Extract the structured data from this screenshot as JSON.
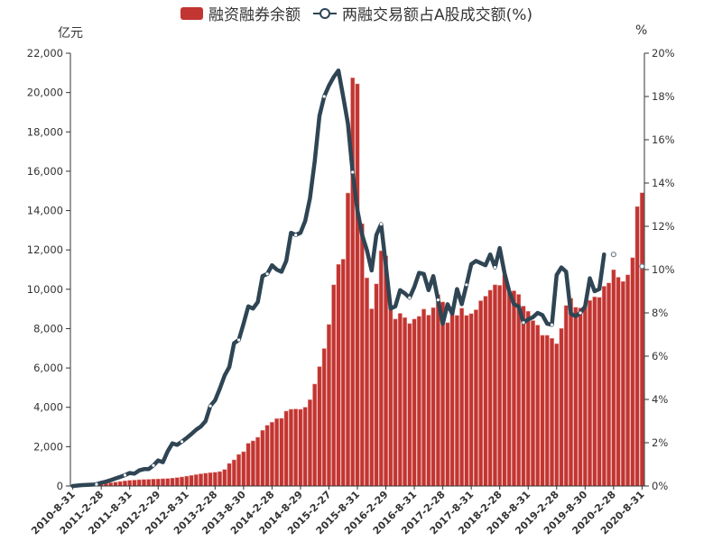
{
  "legend": {
    "bar_label": "融资融券余额",
    "line_label": "两融交易额占A股成交额(%)"
  },
  "chart_data": {
    "type": "bar+line",
    "title": "",
    "left_axis_label": "亿元",
    "right_axis_label": "%",
    "left_ylim": [
      0,
      22000
    ],
    "right_ylim": [
      0,
      20
    ],
    "left_ticks": [
      "0",
      "2,000",
      "4,000",
      "6,000",
      "8,000",
      "10,000",
      "12,000",
      "14,000",
      "16,000",
      "18,000",
      "20,000",
      "22,000"
    ],
    "right_ticks": [
      "0%",
      "2%",
      "4%",
      "6%",
      "8%",
      "10%",
      "12%",
      "14%",
      "16%",
      "18%",
      "20%"
    ],
    "x_tick_labels": [
      "2010-8-31",
      "2011-2-28",
      "2011-8-31",
      "2012-2-29",
      "2012-8-31",
      "2013-2-28",
      "2013-8-30",
      "2014-2-28",
      "2014-8-29",
      "2015-2-27",
      "2015-8-31",
      "2016-2-29",
      "2016-8-31",
      "2017-2-28",
      "2017-8-31",
      "2018-2-28",
      "2018-8-31",
      "2019-2-28",
      "2019-8-30",
      "2020-2-28",
      "2020-8-31"
    ],
    "x_tick_every_n_months": 6,
    "colors": {
      "bar": "#c23531",
      "line": "#2f4554"
    },
    "series": [
      {
        "name": "融资融券余额",
        "type": "bar",
        "axis": "left",
        "values": [
          0,
          0,
          0,
          0,
          30,
          60,
          100,
          130,
          170,
          200,
          230,
          260,
          290,
          300,
          320,
          330,
          340,
          350,
          360,
          370,
          380,
          400,
          430,
          460,
          500,
          540,
          580,
          620,
          650,
          680,
          700,
          734,
          840,
          1147,
          1330,
          1606,
          1743,
          2171,
          2294,
          2477,
          2830,
          3088,
          3242,
          3425,
          3440,
          3807,
          3900,
          3915,
          3900,
          4006,
          4388,
          5183,
          6070,
          6988,
          8211,
          10229,
          11269,
          11529,
          14893,
          20749,
          20443,
          13333,
          10581,
          9006,
          10275,
          11957,
          11700,
          9128,
          8486,
          8776,
          8563,
          8257,
          8486,
          8624,
          8991,
          8685,
          9067,
          9725,
          9358,
          8300,
          8823,
          8670,
          9037,
          8670,
          8761,
          8960,
          9419,
          9648,
          9954,
          10229,
          10200,
          10734,
          9893,
          9924,
          9740,
          9144,
          8884,
          8410,
          8180,
          7661,
          7661,
          7508,
          7233,
          8012,
          9174,
          9541,
          9083,
          9052,
          9083,
          9434,
          9617,
          9587,
          10153,
          10321,
          10994,
          10611,
          10398,
          10734,
          11606,
          14206,
          14908
        ]
      },
      {
        "name": "两融交易额占A股成交额(%)",
        "type": "line",
        "axis": "right",
        "values": [
          0.0,
          0.02,
          0.04,
          0.05,
          0.06,
          0.08,
          0.15,
          0.2,
          0.27,
          0.35,
          0.42,
          0.5,
          0.6,
          0.57,
          0.72,
          0.78,
          0.78,
          0.95,
          1.18,
          1.1,
          1.6,
          1.97,
          1.9,
          2.05,
          2.22,
          2.4,
          2.6,
          2.75,
          3.0,
          3.7,
          3.96,
          4.5,
          5.1,
          5.5,
          6.6,
          6.75,
          7.5,
          8.3,
          8.2,
          8.5,
          9.7,
          9.8,
          10.2,
          10.0,
          9.9,
          10.4,
          11.7,
          11.6,
          11.7,
          12.25,
          13.3,
          15.0,
          17.1,
          18.0,
          18.5,
          18.9,
          19.2,
          18.0,
          16.75,
          14.5,
          12.75,
          11.6,
          10.9,
          9.96,
          11.6,
          12.1,
          10.2,
          8.2,
          8.3,
          9.05,
          8.9,
          8.7,
          9.2,
          9.85,
          9.8,
          9.05,
          9.7,
          8.6,
          7.5,
          8.4,
          7.96,
          9.1,
          8.4,
          9.3,
          10.25,
          10.4,
          10.3,
          10.2,
          10.7,
          10.1,
          11.0,
          9.85,
          9.0,
          8.4,
          8.3,
          7.55,
          7.7,
          7.8,
          8.0,
          7.9,
          7.5,
          7.45,
          9.75,
          10.1,
          9.9,
          7.96,
          7.85,
          8.0,
          8.3,
          9.6,
          9.0,
          9.1,
          10.7,
          null,
          10.7,
          null,
          null,
          null,
          null,
          null,
          10.15
        ]
      }
    ]
  }
}
